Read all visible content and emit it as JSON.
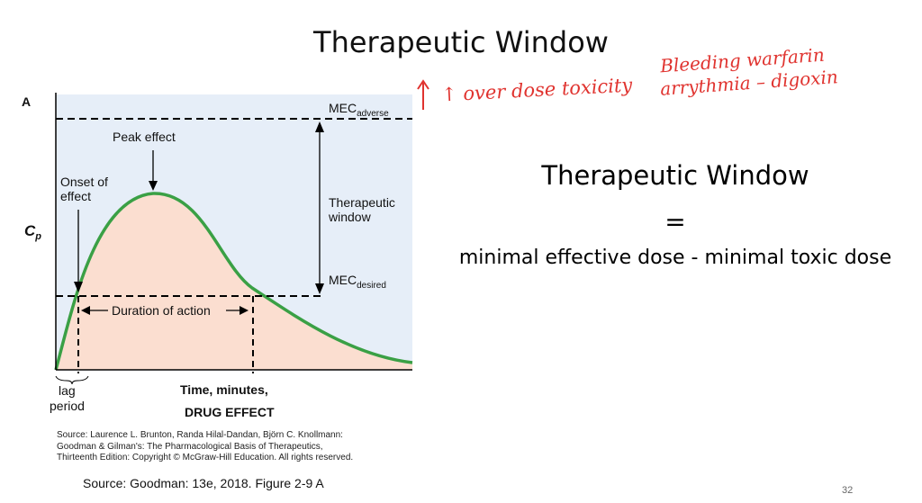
{
  "slide": {
    "title": "Therapeutic Window",
    "page_number": "32",
    "source_line": "Source: Goodman: 13e, 2018. Figure 2-9 A"
  },
  "handwriting": {
    "line1": "↑ over dose toxicity",
    "line2": "Bleeding warfarin",
    "line3": "arrythmia – digoxin",
    "color": "#e0332f"
  },
  "formula": {
    "title": "Therapeutic Window",
    "equals": "=",
    "definition": "minimal effective dose - minimal toxic dose"
  },
  "diagram": {
    "panel_letter": "A",
    "y_axis_label": "C",
    "y_axis_sub": "p",
    "peak_label": "Peak effect",
    "onset_line1": "Onset of",
    "onset_line2": "effect",
    "mec_adverse_main": "MEC",
    "mec_adverse_sub": "adverse",
    "mec_desired_main": "MEC",
    "mec_desired_sub": "desired",
    "window_line1": "Therapeutic",
    "window_line2": "window",
    "duration_label": "Duration of action",
    "lag_line1": "lag",
    "lag_line2": "period",
    "x_label": "Time, minutes,",
    "x_label2": "DRUG EFFECT",
    "colors": {
      "background": "#e6eef8",
      "under_curve": "#fbded0",
      "curve": "#3aa045"
    }
  },
  "caption": {
    "line1": "Source: Laurence L. Brunton, Randa Hilal-Dandan, Björn C. Knollmann:",
    "line2": "Goodman & Gilman's: The Pharmacological Basis of Therapeutics,",
    "line3": "Thirteenth Edition: Copyright © McGraw-Hill Education. All rights reserved."
  }
}
